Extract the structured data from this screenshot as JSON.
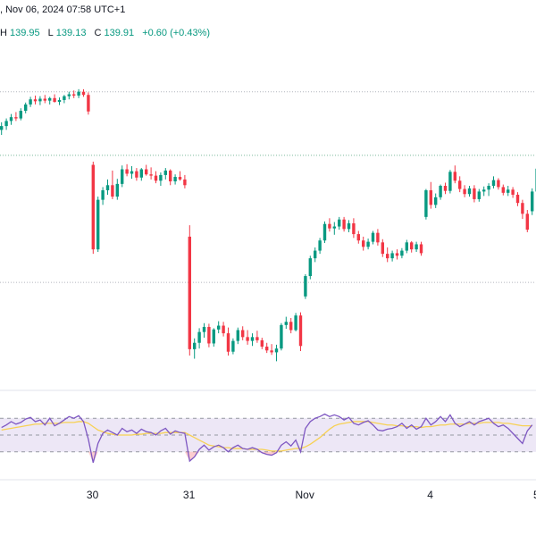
{
  "header": {
    "datetime": ", Nov 06, 2024 07:58 UTC+1",
    "ohlc_h_label": "H",
    "ohlc_h": "139.95",
    "ohlc_l_label": "L",
    "ohlc_l": "139.13",
    "ohlc_c_label": "C",
    "ohlc_c": "139.91",
    "change": "+0.60 (+0.43%)"
  },
  "colors": {
    "up": "#089981",
    "down": "#f23645",
    "rsi_line": "#7e57c2",
    "rsi_ma": "#f7d154",
    "rsi_band": "#ede7f6",
    "grid_dotted": "#b2b5be",
    "hline_green": "#7ab99a"
  },
  "chart_data": [
    {
      "type": "candlestick",
      "x_labels": [
        "30",
        "31",
        "Nov",
        "4",
        "5"
      ],
      "candles": [
        [
          150.0,
          151.2,
          149.2,
          150.6
        ],
        [
          150.6,
          151.8,
          150.0,
          151.4
        ],
        [
          151.4,
          152.5,
          150.8,
          152.0
        ],
        [
          152.0,
          152.8,
          151.4,
          151.8
        ],
        [
          151.8,
          153.4,
          151.5,
          153.0
        ],
        [
          153.0,
          154.3,
          152.6,
          154.0
        ],
        [
          154.0,
          155.2,
          153.6,
          154.8
        ],
        [
          154.8,
          155.4,
          154.0,
          154.5
        ],
        [
          154.5,
          155.3,
          153.9,
          154.9
        ],
        [
          154.9,
          155.5,
          154.2,
          154.6
        ],
        [
          154.6,
          155.2,
          154.0,
          155.0
        ],
        [
          155.0,
          155.6,
          154.3,
          154.4
        ],
        [
          154.4,
          155.1,
          153.9,
          154.7
        ],
        [
          154.7,
          155.5,
          154.2,
          155.3
        ],
        [
          155.3,
          156.0,
          154.8,
          155.6
        ],
        [
          155.6,
          156.2,
          155.0,
          155.4
        ],
        [
          155.4,
          156.4,
          155.0,
          156.0
        ],
        [
          156.0,
          156.4,
          155.2,
          155.5
        ],
        [
          155.5,
          155.9,
          152.4,
          152.9
        ],
        [
          144.5,
          145.0,
          130.5,
          131.2
        ],
        [
          131.2,
          139.5,
          130.8,
          139.0
        ],
        [
          139.0,
          141.0,
          138.2,
          140.5
        ],
        [
          140.5,
          142.2,
          139.8,
          141.3
        ],
        [
          141.3,
          143.6,
          139.1,
          139.5
        ],
        [
          139.5,
          142.3,
          139.0,
          141.5
        ],
        [
          141.5,
          144.4,
          141.0,
          143.8
        ],
        [
          143.8,
          144.6,
          142.7,
          143.1
        ],
        [
          143.1,
          144.3,
          142.3,
          143.5
        ],
        [
          143.5,
          144.0,
          142.0,
          142.5
        ],
        [
          142.5,
          144.0,
          142.0,
          143.8
        ],
        [
          143.8,
          144.5,
          142.8,
          143.0
        ],
        [
          143.0,
          144.1,
          142.2,
          142.8
        ],
        [
          142.8,
          143.5,
          141.6,
          142.0
        ],
        [
          142.0,
          143.3,
          141.2,
          142.9
        ],
        [
          142.9,
          144.0,
          142.2,
          143.6
        ],
        [
          143.6,
          143.8,
          141.3,
          141.9
        ],
        [
          141.9,
          143.0,
          141.4,
          142.6
        ],
        [
          142.6,
          143.5,
          142.0,
          142.2
        ],
        [
          142.2,
          142.9,
          140.8,
          141.3
        ],
        [
          133.2,
          135.0,
          114.5,
          115.5
        ],
        [
          115.5,
          117.2,
          114.0,
          116.5
        ],
        [
          116.5,
          118.8,
          115.6,
          118.2
        ],
        [
          118.2,
          119.6,
          117.3,
          119.0
        ],
        [
          119.0,
          119.5,
          115.8,
          116.4
        ],
        [
          116.4,
          118.8,
          115.9,
          118.6
        ],
        [
          118.6,
          119.9,
          118.0,
          119.2
        ],
        [
          119.2,
          119.8,
          117.5,
          118.0
        ],
        [
          118.0,
          118.9,
          114.5,
          115.1
        ],
        [
          115.1,
          117.2,
          114.7,
          116.8
        ],
        [
          116.8,
          118.9,
          116.3,
          118.5
        ],
        [
          118.5,
          119.1,
          116.9,
          117.4
        ],
        [
          117.4,
          118.5,
          116.2,
          116.8
        ],
        [
          116.8,
          118.0,
          116.0,
          117.4
        ],
        [
          117.4,
          118.4,
          116.5,
          116.9
        ],
        [
          116.9,
          117.3,
          115.5,
          115.9
        ],
        [
          115.9,
          116.5,
          114.9,
          115.3
        ],
        [
          115.3,
          116.3,
          114.6,
          115.0
        ],
        [
          115.0,
          116.2,
          113.6,
          115.6
        ],
        [
          115.6,
          119.6,
          115.3,
          119.3
        ],
        [
          119.3,
          120.6,
          118.7,
          119.8
        ],
        [
          119.8,
          120.4,
          118.0,
          118.5
        ],
        [
          118.5,
          121.2,
          118.3,
          120.8
        ],
        [
          120.8,
          121.3,
          115.2,
          116.0
        ],
        [
          123.8,
          127.3,
          123.4,
          127.0
        ],
        [
          127.0,
          130.2,
          126.5,
          129.8
        ],
        [
          129.8,
          131.5,
          129.2,
          131.0
        ],
        [
          131.0,
          133.0,
          130.5,
          132.6
        ],
        [
          132.6,
          135.6,
          132.2,
          135.2
        ],
        [
          135.2,
          136.1,
          134.0,
          134.5
        ],
        [
          134.5,
          135.5,
          133.5,
          134.8
        ],
        [
          134.8,
          136.3,
          134.3,
          135.9
        ],
        [
          135.9,
          136.3,
          134.0,
          134.4
        ],
        [
          134.4,
          135.8,
          133.9,
          135.3
        ],
        [
          135.3,
          136.1,
          133.0,
          133.6
        ],
        [
          133.6,
          134.1,
          132.1,
          132.6
        ],
        [
          132.6,
          133.2,
          131.0,
          131.6
        ],
        [
          131.6,
          132.9,
          131.2,
          132.4
        ],
        [
          132.4,
          134.1,
          132.0,
          133.8
        ],
        [
          133.8,
          134.4,
          131.8,
          132.3
        ],
        [
          132.3,
          132.8,
          130.0,
          130.5
        ],
        [
          130.5,
          131.5,
          129.2,
          129.8
        ],
        [
          129.8,
          131.0,
          129.3,
          130.6
        ],
        [
          130.6,
          131.2,
          129.6,
          130.2
        ],
        [
          130.2,
          131.4,
          129.8,
          131.0
        ],
        [
          131.0,
          132.7,
          130.6,
          132.3
        ],
        [
          132.3,
          132.5,
          130.7,
          131.2
        ],
        [
          131.2,
          132.4,
          130.8,
          132.0
        ],
        [
          132.0,
          132.4,
          130.2,
          130.6
        ],
        [
          136.3,
          140.7,
          135.9,
          140.5
        ],
        [
          140.5,
          141.8,
          137.6,
          138.2
        ],
        [
          138.2,
          140.0,
          137.7,
          139.4
        ],
        [
          139.4,
          141.4,
          139.0,
          141.2
        ],
        [
          141.2,
          141.7,
          139.9,
          140.4
        ],
        [
          140.4,
          143.7,
          140.0,
          143.4
        ],
        [
          143.4,
          144.4,
          141.6,
          142.0
        ],
        [
          142.0,
          142.7,
          140.2,
          140.7
        ],
        [
          140.7,
          141.3,
          139.4,
          139.9
        ],
        [
          139.9,
          141.2,
          139.5,
          140.8
        ],
        [
          140.8,
          141.3,
          138.6,
          139.1
        ],
        [
          139.1,
          140.7,
          138.7,
          140.3
        ],
        [
          140.3,
          141.1,
          139.6,
          140.6
        ],
        [
          140.6,
          141.6,
          139.6,
          141.2
        ],
        [
          141.2,
          142.7,
          140.8,
          142.1
        ],
        [
          142.1,
          142.4,
          140.6,
          141.0
        ],
        [
          141.0,
          141.4,
          139.7,
          140.1
        ],
        [
          140.1,
          141.2,
          139.6,
          140.6
        ],
        [
          140.6,
          141.0,
          139.3,
          139.8
        ],
        [
          139.8,
          140.2,
          138.0,
          138.5
        ],
        [
          138.5,
          139.0,
          136.0,
          136.8
        ],
        [
          136.8,
          137.4,
          133.9,
          134.3
        ],
        [
          137.2,
          140.8,
          136.6,
          140.3
        ],
        [
          140.3,
          144.6,
          139.8,
          143.9
        ]
      ],
      "gridlines": [
        156.0,
        146.0,
        126.0
      ],
      "y_range": [
        110,
        162
      ]
    },
    {
      "type": "line",
      "name": "RSI",
      "y_range": [
        0,
        100
      ],
      "band": [
        30,
        70
      ],
      "midline": 50,
      "rsi": [
        59,
        62,
        66,
        63,
        65,
        69,
        71,
        66,
        68,
        62,
        70,
        61,
        64,
        68,
        72,
        70,
        73,
        66,
        45,
        17,
        40,
        52,
        56,
        53,
        50,
        58,
        54,
        56,
        52,
        57,
        54,
        53,
        50,
        55,
        58,
        51,
        55,
        53,
        52,
        19,
        24,
        33,
        38,
        32,
        36,
        38,
        35,
        30,
        35,
        38,
        34,
        33,
        35,
        33,
        29,
        27,
        26,
        29,
        38,
        42,
        37,
        44,
        30,
        58,
        66,
        70,
        72,
        75,
        72,
        74,
        72,
        68,
        71,
        64,
        62,
        65,
        67,
        62,
        56,
        55,
        57,
        58,
        60,
        64,
        58,
        62,
        57,
        60,
        70,
        62,
        66,
        72,
        66,
        74,
        64,
        60,
        63,
        66,
        62,
        66,
        68,
        70,
        64,
        60,
        62,
        58,
        52,
        46,
        40,
        55,
        62
      ],
      "ma": [
        56,
        57,
        58,
        59,
        60,
        61,
        62,
        63,
        63,
        64,
        64,
        64,
        64,
        65,
        65,
        65,
        66,
        66,
        64,
        60,
        56,
        54,
        52,
        51,
        50,
        50,
        50,
        50,
        51,
        51,
        52,
        52,
        52,
        52,
        53,
        53,
        53,
        53,
        53,
        50,
        47,
        44,
        41,
        38,
        37,
        36,
        35,
        35,
        34,
        34,
        34,
        33,
        33,
        33,
        33,
        32,
        31,
        31,
        31,
        32,
        33,
        34,
        34,
        36,
        39,
        43,
        47,
        52,
        57,
        61,
        63,
        64,
        65,
        66,
        66,
        66,
        66,
        65,
        64,
        63,
        62,
        62,
        61,
        61,
        60,
        60,
        60,
        59,
        60,
        60,
        61,
        62,
        62,
        63,
        63,
        63,
        63,
        64,
        64,
        64,
        65,
        65,
        65,
        65,
        64,
        64,
        63,
        62,
        61,
        61,
        61
      ]
    }
  ]
}
